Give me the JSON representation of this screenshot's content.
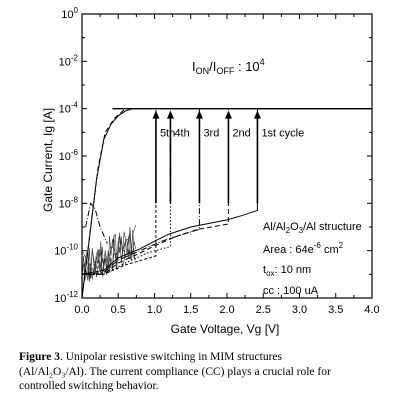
{
  "chart_data": {
    "type": "line",
    "xlabel": "Gate Voltage, Vg [V]",
    "ylabel": "Gate Current, Ig [A]",
    "xlim": [
      0.0,
      4.0
    ],
    "ylim": [
      1e-12,
      1
    ],
    "yscale": "log",
    "x_ticks": [
      "0.0",
      "0.5",
      "1.0",
      "1.5",
      "2.0",
      "2.5",
      "3.0",
      "3.5",
      "4.0"
    ],
    "y_ticks": [
      {
        "base": "10",
        "exp": "0"
      },
      {
        "base": "10",
        "exp": "-2"
      },
      {
        "base": "10",
        "exp": "-4"
      },
      {
        "base": "10",
        "exp": "-6"
      },
      {
        "base": "10",
        "exp": "-8"
      },
      {
        "base": "10",
        "exp": "-10"
      },
      {
        "base": "10",
        "exp": "-12"
      }
    ],
    "ratio_text": {
      "prefix": "I",
      "on": "ON",
      "slash": "/I",
      "off": "OFF",
      "mid": " : 10",
      "exp": "4"
    },
    "structure": {
      "pre": "Al/Al",
      "s1": "2",
      "mid": "O",
      "s2": "3",
      "post": "/Al structure"
    },
    "area": {
      "pre": "Area : 64e",
      "exp": "-6",
      "post": " cm",
      "exp2": "2"
    },
    "tox": {
      "t": "t",
      "sub": "ox",
      "post": ": 10 nm"
    },
    "cc_text": "cc : 100 uA",
    "compliance": 0.0001,
    "cycles": [
      {
        "label": "1st cycle",
        "set_voltage": 2.42
      },
      {
        "label": "2nd",
        "set_voltage": 2.02
      },
      {
        "label": "3rd",
        "set_voltage": 1.62
      },
      {
        "label": "4th",
        "set_voltage": 1.22
      },
      {
        "label": "5th",
        "set_voltage": 1.02
      }
    ],
    "series": [
      {
        "style": "solid",
        "points": [
          [
            0.0,
            1e-11
          ],
          [
            0.3,
            1.5e-11
          ],
          [
            0.5,
            5e-11
          ],
          [
            0.8,
            1.2e-10
          ],
          [
            1.0,
            2.5e-10
          ],
          [
            1.2,
            5e-10
          ],
          [
            1.5,
            1e-09
          ],
          [
            1.8,
            1.5e-09
          ],
          [
            2.0,
            2e-09
          ],
          [
            2.2,
            3e-09
          ],
          [
            2.42,
            5e-09
          ],
          [
            2.42,
            0.0001
          ],
          [
            4.0,
            0.0001
          ]
        ]
      },
      {
        "style": "dashed",
        "points": [
          [
            0.0,
            1e-11
          ],
          [
            0.3,
            1e-11
          ],
          [
            0.5,
            3e-11
          ],
          [
            0.8,
            8e-11
          ],
          [
            1.0,
            1.6e-10
          ],
          [
            1.3,
            4e-10
          ],
          [
            1.6,
            8e-10
          ],
          [
            2.0,
            1.3e-09
          ],
          [
            2.02,
            1.3e-09
          ],
          [
            2.02,
            0.0001
          ]
        ]
      },
      {
        "style": "dashdot",
        "points": [
          [
            0.0,
            1e-11
          ],
          [
            0.3,
            1.2e-11
          ],
          [
            0.5,
            4e-11
          ],
          [
            0.8,
            1e-10
          ],
          [
            1.1,
            2.5e-10
          ],
          [
            1.4,
            5e-10
          ],
          [
            1.62,
            8e-10
          ],
          [
            1.62,
            0.0001
          ]
        ]
      },
      {
        "style": "dotted",
        "points": [
          [
            0.0,
            1e-11
          ],
          [
            0.3,
            1e-11
          ],
          [
            0.6,
            3e-11
          ],
          [
            0.9,
            8e-11
          ],
          [
            1.22,
            1.5e-10
          ],
          [
            1.22,
            0.0001
          ]
        ]
      },
      {
        "style": "dashed2",
        "points": [
          [
            0.0,
            1e-11
          ],
          [
            0.3,
            1e-11
          ],
          [
            0.6,
            2.5e-11
          ],
          [
            1.02,
            6e-11
          ],
          [
            1.02,
            0.0001
          ]
        ]
      },
      {
        "style": "solid",
        "points": [
          [
            0.0,
            1e-12
          ],
          [
            0.1,
            3e-10
          ],
          [
            0.2,
            1e-07
          ],
          [
            0.3,
            5e-06
          ],
          [
            0.4,
            2.2e-05
          ],
          [
            0.5,
            5e-05
          ],
          [
            0.6,
            8e-05
          ],
          [
            0.7,
            0.0001
          ]
        ]
      },
      {
        "style": "dashed",
        "points": [
          [
            0.0,
            1e-12
          ],
          [
            0.12,
            1e-09
          ],
          [
            0.22,
            3e-07
          ],
          [
            0.32,
            1e-05
          ],
          [
            0.45,
            4e-05
          ],
          [
            0.6,
            0.0001
          ]
        ]
      },
      {
        "style": "dashdot",
        "points": [
          [
            0.05,
            1e-09
          ],
          [
            0.12,
            1e-08
          ],
          [
            0.18,
            6e-09
          ],
          [
            0.25,
            1e-09
          ],
          [
            0.35,
            2e-10
          ]
        ]
      }
    ]
  },
  "caption": {
    "fig": "Figure 3",
    "line1": ". Unipolar resistive switching in MIM structures",
    "line2": "(Al/Al₂O₃/Al). The current compliance (CC) plays a crucial role for",
    "line3": "controlled switching behavior."
  }
}
